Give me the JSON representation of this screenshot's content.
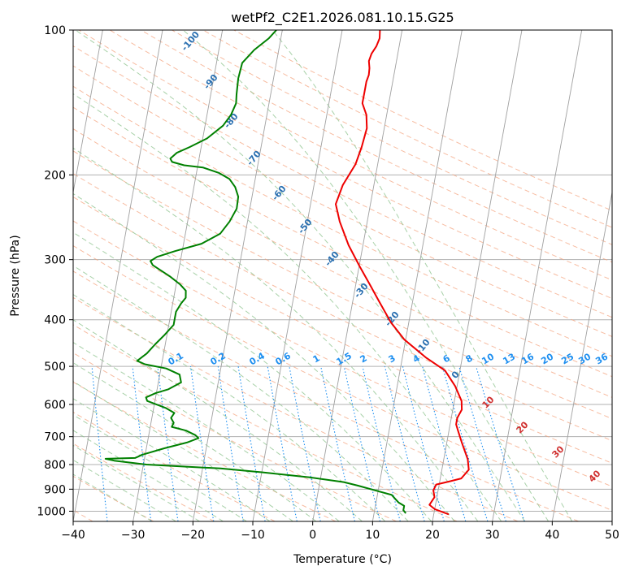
{
  "chart_data": {
    "type": "line",
    "title": "wetPf2_C2E1.2026.081.10.15.G25",
    "xlabel": "Temperature (°C)",
    "ylabel": "Pressure (hPa)",
    "xlim": [
      -40,
      50
    ],
    "ylim": [
      1050,
      100
    ],
    "y_scale": "log",
    "grid": true,
    "x_ticks": [
      "−40",
      "−30",
      "−20",
      "−10",
      "0",
      "10",
      "20",
      "30",
      "40",
      "50"
    ],
    "y_ticks": [
      {
        "p": 100,
        "label": "100"
      },
      {
        "p": 200,
        "label": "200"
      },
      {
        "p": 300,
        "label": "300"
      },
      {
        "p": 400,
        "label": "400"
      },
      {
        "p": 500,
        "label": "500"
      },
      {
        "p": 600,
        "label": "600"
      },
      {
        "p": 700,
        "label": "700"
      },
      {
        "p": 800,
        "label": "800"
      },
      {
        "p": 900,
        "label": "900"
      },
      {
        "p": 1000,
        "label": "1000"
      }
    ],
    "colors": {
      "temperature": "#ee0000",
      "dewpoint": "#008000",
      "isotherm": "#a0a0a0",
      "isobar": "#b0b0b0",
      "dry_adiabat": "#f4a582",
      "moist_adiabat": "#92c592",
      "mixing_ratio": "#1e8ff0"
    },
    "dry_adiabat_labels": [
      "-100",
      "-90",
      "-80",
      "-70",
      "-60",
      "-50",
      "-40",
      "-30",
      "-20",
      "-10",
      "0"
    ],
    "moist_adiabat_labels": [
      "10",
      "20",
      "30",
      "40"
    ],
    "mixing_ratio_labels": [
      "0.1",
      "0.2",
      "0.4",
      "0.6",
      "1",
      "1.5",
      "2",
      "3",
      "4",
      "6",
      "8",
      "10",
      "13",
      "16",
      "20",
      "25",
      "30",
      "36"
    ],
    "series": [
      {
        "key": "temperature",
        "points": [
          [
            22.5,
            1015
          ],
          [
            20,
            990
          ],
          [
            19,
            970
          ],
          [
            19.6,
            935
          ],
          [
            19.2,
            905
          ],
          [
            19.5,
            880
          ],
          [
            21.5,
            868
          ],
          [
            23.5,
            855
          ],
          [
            24.5,
            820
          ],
          [
            24,
            780
          ],
          [
            22.5,
            720
          ],
          [
            21.5,
            680
          ],
          [
            21,
            660
          ],
          [
            21,
            640
          ],
          [
            21.5,
            615
          ],
          [
            21.2,
            590
          ],
          [
            19.7,
            550
          ],
          [
            17.5,
            510
          ],
          [
            14,
            480
          ],
          [
            9.8,
            440
          ],
          [
            7,
            405
          ],
          [
            4.3,
            365
          ],
          [
            2.5,
            340
          ],
          [
            0.1,
            310
          ],
          [
            -2.4,
            280
          ],
          [
            -4.6,
            250
          ],
          [
            -5.8,
            230
          ],
          [
            -5.2,
            210
          ],
          [
            -3.7,
            190
          ],
          [
            -3.2,
            175
          ],
          [
            -2.9,
            160
          ],
          [
            -3.4,
            150
          ],
          [
            -4.4,
            142
          ],
          [
            -4.4,
            132
          ],
          [
            -4.4,
            128
          ],
          [
            -4.2,
            124
          ],
          [
            -4.3,
            120
          ],
          [
            -4.6,
            116
          ],
          [
            -4.4,
            112
          ],
          [
            -3.8,
            108
          ],
          [
            -3.5,
            104
          ],
          [
            -3.7,
            100
          ]
        ]
      },
      {
        "key": "dewpoint",
        "points": [
          [
            15.3,
            1010
          ],
          [
            14.8,
            995
          ],
          [
            14.8,
            975
          ],
          [
            13.8,
            960
          ],
          [
            13.2,
            945
          ],
          [
            12.4,
            925
          ],
          [
            9.5,
            905
          ],
          [
            6.5,
            885
          ],
          [
            4,
            870
          ],
          [
            -2,
            850
          ],
          [
            -10,
            830
          ],
          [
            -17,
            815
          ],
          [
            -29.5,
            800
          ],
          [
            -35,
            785
          ],
          [
            -36.5,
            778
          ],
          [
            -31.6,
            775
          ],
          [
            -31.1,
            770
          ],
          [
            -30.6,
            764
          ],
          [
            -27,
            740
          ],
          [
            -23.4,
            720
          ],
          [
            -21.6,
            705
          ],
          [
            -22.2,
            695
          ],
          [
            -23.9,
            680
          ],
          [
            -26.4,
            668
          ],
          [
            -26.2,
            655
          ],
          [
            -26.8,
            640
          ],
          [
            -26.4,
            625
          ],
          [
            -28,
            610
          ],
          [
            -31.3,
            590
          ],
          [
            -31.6,
            580
          ],
          [
            -30.1,
            568
          ],
          [
            -28.1,
            558
          ],
          [
            -26.2,
            540
          ],
          [
            -26.7,
            520
          ],
          [
            -29.1,
            505
          ],
          [
            -32.8,
            495
          ],
          [
            -34.2,
            487
          ],
          [
            -32.8,
            470
          ],
          [
            -31.7,
            450
          ],
          [
            -30.4,
            430
          ],
          [
            -29.2,
            410
          ],
          [
            -29.2,
            400
          ],
          [
            -29.2,
            385
          ],
          [
            -28.6,
            370
          ],
          [
            -28,
            360
          ],
          [
            -28.2,
            348
          ],
          [
            -29.3,
            338
          ],
          [
            -31.3,
            325
          ],
          [
            -34.5,
            308
          ],
          [
            -35,
            302
          ],
          [
            -34,
            296
          ],
          [
            -31.2,
            288
          ],
          [
            -27,
            278
          ],
          [
            -24.2,
            265
          ],
          [
            -23,
            250
          ],
          [
            -22.2,
            235
          ],
          [
            -22.3,
            222
          ],
          [
            -23.1,
            212
          ],
          [
            -24.3,
            204
          ],
          [
            -26.3,
            198
          ],
          [
            -29.1,
            193
          ],
          [
            -32.3,
            191
          ],
          [
            -34.4,
            188
          ],
          [
            -34.8,
            185
          ],
          [
            -33.9,
            180
          ],
          [
            -31.9,
            175
          ],
          [
            -29.3,
            168
          ],
          [
            -27,
            158
          ],
          [
            -26,
            150
          ],
          [
            -25.5,
            142
          ],
          [
            -25.7,
            136
          ],
          [
            -25.9,
            126
          ],
          [
            -25.7,
            117
          ],
          [
            -24.1,
            110
          ],
          [
            -22,
            104
          ],
          [
            -21,
            100
          ]
        ]
      }
    ]
  }
}
